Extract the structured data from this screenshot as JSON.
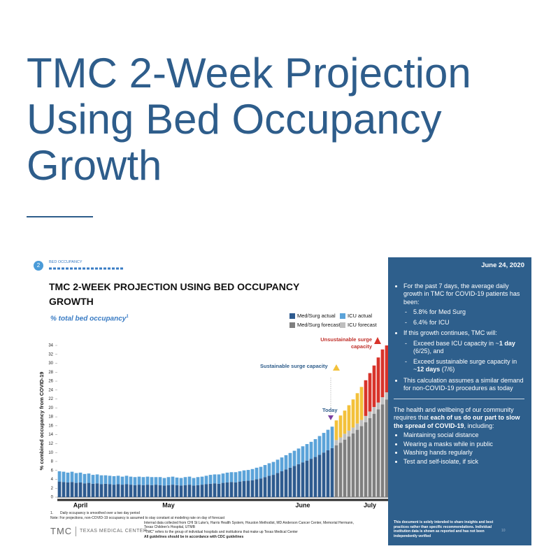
{
  "page": {
    "headline": "TMC 2-Week Projection Using Bed Occupancy Growth",
    "section_number": "2",
    "section_label": "BED OCCUPANCY",
    "sidebar": {
      "date": "June 24, 2020",
      "growth_intro": "For the past 7 days, the average daily growth in TMC for COVID-19 patients has been:",
      "growth_items": [
        "5.8% for Med Surg",
        "6.4% for ICU"
      ],
      "continue_intro": "If this growth continues, TMC will:",
      "continue_items": [
        [
          "Exceed base ICU capacity in ~",
          "1 day",
          " (6/25), and"
        ],
        [
          "Exceed sustainable surge capacity in ~",
          "12 days",
          " (7/6)"
        ]
      ],
      "assumption": "This calculation assumes a similar demand for non-COVID-19 procedures as today",
      "call": [
        "The health and wellbeing of our community requires that ",
        "each of us do our part to slow the spread of COVID-19",
        ", including:"
      ],
      "actions": [
        "Maintaining social distance",
        "Wearing a masks while in public",
        "Washing hands regularly",
        "Test and self-isolate, if sick"
      ],
      "disclaimer": "This document is solely intended to share insights and best practices rather than specific recommendations. Individual institution data is shown as reported and has not been independently verified",
      "page_number": "10"
    },
    "footnotes": {
      "number": "1.",
      "smoothing": "Daily occupancy is smoothed over a two day period",
      "note": "Note: For projections, non-COVID-19 occupancy is assumed to stay constant at modeling rate on day of forecast",
      "sources": "Internal data collected from CHI St Luke's, Harris Health System, Houston Methodist, MD Anderson Cancer Center, Memorial Hermann, Texas Children's Hospital, UTMB",
      "tmc_def": "\"TMC\" refers to the group of individual hospitals and institutions that make up Texas Medical Center",
      "cdc": "All guidelines should be in accordance with CDC guidelines"
    },
    "logo": {
      "mark": "TMC",
      "name": "TEXAS MEDICAL CENTER"
    }
  },
  "chart_data": {
    "type": "bar",
    "stacked": true,
    "title": "TMC 2-WEEK PROJECTION USING BED OCCUPANCY GROWTH",
    "subtitle": "% total bed occupancy",
    "subtitle_note": "1",
    "ylabel": "% combined occupancy from COVID-19",
    "ylim": [
      0,
      34
    ],
    "yticks": [
      0,
      2,
      4,
      6,
      8,
      10,
      12,
      14,
      16,
      18,
      20,
      22,
      24,
      26,
      28,
      30,
      32,
      34
    ],
    "grid": false,
    "annotations": [
      "Unsustainable surge capacity",
      "Sustainable surge capacity",
      "Today"
    ],
    "categories": [
      null,
      null,
      null,
      null,
      null,
      "April",
      null,
      null,
      null,
      null,
      null,
      null,
      null,
      null,
      null,
      null,
      null,
      null,
      null,
      null,
      null,
      null,
      null,
      null,
      null,
      null,
      "May",
      null,
      null,
      null,
      null,
      null,
      null,
      null,
      null,
      null,
      null,
      null,
      null,
      null,
      null,
      null,
      null,
      null,
      null,
      null,
      null,
      null,
      null,
      null,
      null,
      null,
      null,
      null,
      null,
      null,
      null,
      null,
      "June",
      null,
      null,
      null,
      null,
      null,
      null,
      null,
      null,
      null,
      null,
      null,
      null,
      null,
      null,
      null,
      "July",
      null,
      null,
      null,
      null
    ],
    "series": [
      {
        "name": "Med/Surg actual",
        "color": "#2e5b8f",
        "values": [
          3.5,
          3.4,
          3.3,
          3.4,
          3.2,
          3.3,
          3.1,
          3.2,
          3.0,
          3.1,
          2.9,
          3.0,
          2.9,
          2.8,
          2.9,
          2.8,
          2.9,
          2.8,
          2.7,
          2.8,
          2.7,
          2.8,
          2.7,
          2.8,
          2.7,
          2.6,
          2.7,
          2.8,
          2.7,
          2.6,
          2.7,
          2.8,
          2.6,
          2.7,
          2.8,
          2.9,
          3.0,
          3.1,
          3.0,
          3.2,
          3.3,
          3.4,
          3.3,
          3.5,
          3.6,
          3.7,
          3.8,
          4.0,
          4.2,
          4.5,
          4.8,
          5.0,
          5.4,
          5.8,
          6.2,
          6.6,
          7.0,
          7.4,
          7.8,
          8.2,
          8.6,
          9.0,
          9.5,
          10.0,
          10.5,
          11.0,
          null,
          null,
          null,
          null,
          null,
          null,
          null,
          null,
          null,
          null,
          null,
          null,
          null
        ]
      },
      {
        "name": "ICU actual",
        "color": "#5ba3d9",
        "values": [
          2.3,
          2.3,
          2.2,
          2.3,
          2.2,
          2.2,
          2.1,
          2.1,
          2.0,
          2.0,
          2.0,
          1.9,
          1.9,
          1.9,
          1.9,
          1.8,
          1.9,
          1.8,
          1.8,
          1.8,
          1.8,
          1.8,
          1.8,
          1.7,
          1.8,
          1.7,
          1.8,
          1.8,
          1.7,
          1.7,
          1.8,
          1.8,
          1.7,
          1.8,
          1.8,
          1.9,
          2.0,
          2.0,
          2.1,
          2.1,
          2.2,
          2.2,
          2.3,
          2.3,
          2.4,
          2.4,
          2.5,
          2.6,
          2.6,
          2.7,
          2.8,
          2.9,
          3.0,
          3.1,
          3.2,
          3.3,
          3.4,
          3.5,
          3.6,
          3.7,
          3.8,
          4.0,
          4.2,
          4.4,
          4.6,
          4.8,
          null,
          null,
          null,
          null,
          null,
          null,
          null,
          null,
          null,
          null,
          null,
          null,
          null
        ]
      },
      {
        "name": "Med/Surg forecast",
        "color": "#7f7f7f",
        "values": [
          null,
          null,
          null,
          null,
          null,
          null,
          null,
          null,
          null,
          null,
          null,
          null,
          null,
          null,
          null,
          null,
          null,
          null,
          null,
          null,
          null,
          null,
          null,
          null,
          null,
          null,
          null,
          null,
          null,
          null,
          null,
          null,
          null,
          null,
          null,
          null,
          null,
          null,
          null,
          null,
          null,
          null,
          null,
          null,
          null,
          null,
          null,
          null,
          null,
          null,
          null,
          null,
          null,
          null,
          null,
          null,
          null,
          null,
          null,
          null,
          null,
          null,
          null,
          null,
          null,
          null,
          11.6,
          12.2,
          12.9,
          13.6,
          14.3,
          15.1,
          15.9,
          16.8,
          17.7,
          18.7,
          19.7,
          20.8,
          21.9
        ]
      },
      {
        "name": "ICU forecast",
        "color": "#bfbfbf",
        "values": [
          null,
          null,
          null,
          null,
          null,
          null,
          null,
          null,
          null,
          null,
          null,
          null,
          null,
          null,
          null,
          null,
          null,
          null,
          null,
          null,
          null,
          null,
          null,
          null,
          null,
          null,
          null,
          null,
          null,
          null,
          null,
          null,
          null,
          null,
          null,
          null,
          null,
          null,
          null,
          null,
          null,
          null,
          null,
          null,
          null,
          null,
          null,
          null,
          null,
          null,
          null,
          null,
          null,
          null,
          null,
          null,
          null,
          null,
          null,
          null,
          null,
          null,
          null,
          null,
          null,
          null,
          1.2,
          1.2,
          1.3,
          1.3,
          1.3,
          1.4,
          1.4,
          1.4,
          1.5,
          1.5,
          1.5,
          1.6,
          1.6
        ]
      },
      {
        "color": "#f3c13a",
        "values": [
          null,
          null,
          null,
          null,
          null,
          null,
          null,
          null,
          null,
          null,
          null,
          null,
          null,
          null,
          null,
          null,
          null,
          null,
          null,
          null,
          null,
          null,
          null,
          null,
          null,
          null,
          null,
          null,
          null,
          null,
          null,
          null,
          null,
          null,
          null,
          null,
          null,
          null,
          null,
          null,
          null,
          null,
          null,
          null,
          null,
          null,
          null,
          null,
          null,
          null,
          null,
          null,
          null,
          null,
          null,
          null,
          null,
          null,
          null,
          null,
          null,
          null,
          null,
          null,
          null,
          null,
          4.4,
          4.9,
          5.2,
          5.7,
          6.3,
          6.8,
          7.4,
          null,
          null,
          null,
          null,
          null,
          null
        ]
      },
      {
        "color": "#d8332a",
        "values": [
          null,
          null,
          null,
          null,
          null,
          null,
          null,
          null,
          null,
          null,
          null,
          null,
          null,
          null,
          null,
          null,
          null,
          null,
          null,
          null,
          null,
          null,
          null,
          null,
          null,
          null,
          null,
          null,
          null,
          null,
          null,
          null,
          null,
          null,
          null,
          null,
          null,
          null,
          null,
          null,
          null,
          null,
          null,
          null,
          null,
          null,
          null,
          null,
          null,
          null,
          null,
          null,
          null,
          null,
          null,
          null,
          null,
          null,
          null,
          null,
          null,
          null,
          null,
          null,
          null,
          null,
          null,
          null,
          null,
          null,
          null,
          null,
          null,
          8.0,
          8.6,
          9.3,
          10.1,
          10.7,
          10.5
        ]
      }
    ]
  }
}
